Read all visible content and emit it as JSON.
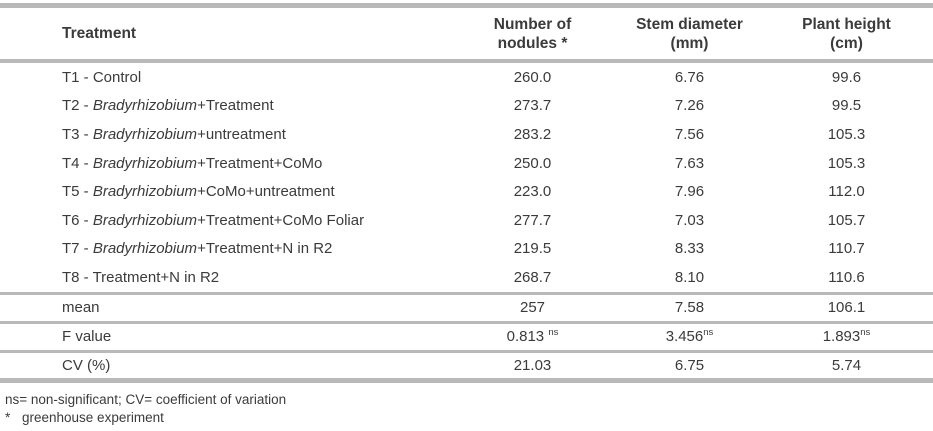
{
  "table": {
    "columns": [
      {
        "label": "Treatment"
      },
      {
        "line1": "Number of",
        "line2": "nodules *"
      },
      {
        "line1": "Stem diameter",
        "line2": "(mm)"
      },
      {
        "line1": "Plant height",
        "line2": "(cm)"
      }
    ],
    "rows": [
      {
        "treatment": {
          "prefix": "T1 - Control",
          "italic": "",
          "suffix": ""
        },
        "nodules": "260.0",
        "stem": "6.76",
        "height": "99.6"
      },
      {
        "treatment": {
          "prefix": "T2 - ",
          "italic": "Bradyrhizobium",
          "suffix": "+Treatment"
        },
        "nodules": "273.7",
        "stem": "7.26",
        "height": "99.5"
      },
      {
        "treatment": {
          "prefix": "T3 - ",
          "italic": "Bradyrhizobium",
          "suffix": "+untreatment"
        },
        "nodules": "283.2",
        "stem": "7.56",
        "height": "105.3"
      },
      {
        "treatment": {
          "prefix": "T4 - ",
          "italic": "Bradyrhizobium",
          "suffix": "+Treatment+CoMo"
        },
        "nodules": "250.0",
        "stem": "7.63",
        "height": "105.3"
      },
      {
        "treatment": {
          "prefix": "T5 - ",
          "italic": "Bradyrhizobium",
          "suffix": "+CoMo+untreatment"
        },
        "nodules": "223.0",
        "stem": "7.96",
        "height": "112.0"
      },
      {
        "treatment": {
          "prefix": "T6 - ",
          "italic": "Bradyrhizobium",
          "suffix": "+Treatment+CoMo Foliar"
        },
        "nodules": "277.7",
        "stem": "7.03",
        "height": "105.7"
      },
      {
        "treatment": {
          "prefix": "T7 - ",
          "italic": "Bradyrhizobium",
          "suffix": "+Treatment+N in R2"
        },
        "nodules": "219.5",
        "stem": "8.33",
        "height": "110.7"
      },
      {
        "treatment": {
          "prefix": "T8 - Treatment+N in R2",
          "italic": "",
          "suffix": ""
        },
        "nodules": "268.7",
        "stem": "8.10",
        "height": "110.6"
      }
    ],
    "stats": [
      {
        "label": "mean",
        "values": [
          {
            "text": "257",
            "sup": ""
          },
          {
            "text": "7.58",
            "sup": ""
          },
          {
            "text": "106.1",
            "sup": ""
          }
        ]
      },
      {
        "label": "F value",
        "values": [
          {
            "text": "0.813 ",
            "sup": "ns"
          },
          {
            "text": "3.456",
            "sup": "ns"
          },
          {
            "text": "1.893",
            "sup": "ns"
          }
        ]
      },
      {
        "label": "CV (%)",
        "values": [
          {
            "text": "21.03",
            "sup": ""
          },
          {
            "text": "6.75",
            "sup": ""
          },
          {
            "text": "5.74",
            "sup": ""
          }
        ]
      }
    ]
  },
  "footnotes": {
    "line1": "ns= non-significant; CV= coefficient of variation",
    "line2_marker": "*",
    "line2_text": "greenhouse experiment"
  },
  "colors": {
    "text": "#3b3b3b",
    "rule": "#b9b9b9",
    "background": "#ffffff"
  }
}
